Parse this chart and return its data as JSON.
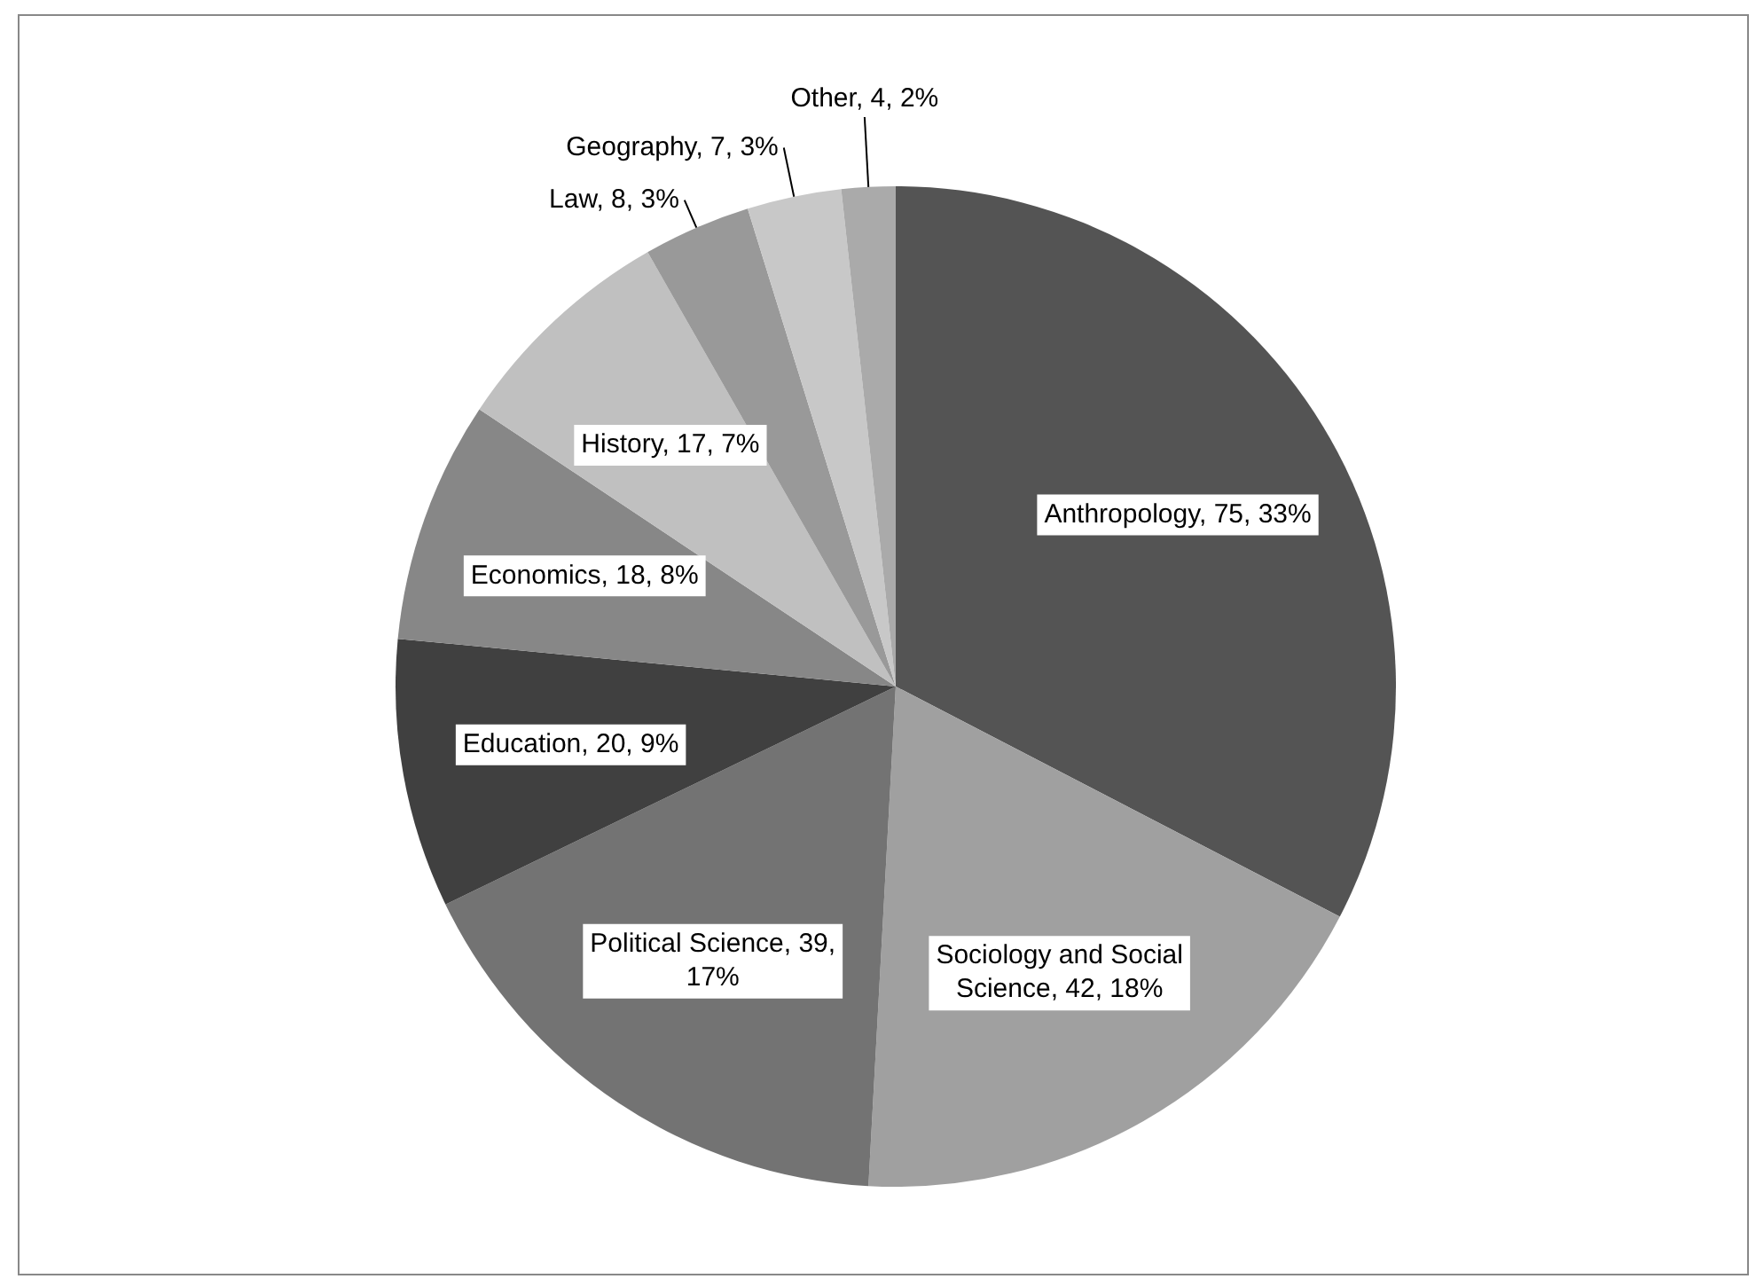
{
  "chart_data": {
    "type": "pie",
    "categories": [
      "Anthropology",
      "Sociology and Social Science",
      "Political Science",
      "Education",
      "Economics",
      "History",
      "Law",
      "Geography",
      "Other"
    ],
    "values": [
      75,
      42,
      39,
      20,
      18,
      17,
      8,
      7,
      4
    ],
    "colors": [
      "#545454",
      "#a0a0a0",
      "#737373",
      "#404040",
      "#878787",
      "#c0c0c0",
      "#999999",
      "#c8c8c8",
      "#aaaaaa"
    ],
    "value_labels": [
      "75, 33%",
      "42, 18%",
      "39, 17%",
      "20, 9%",
      "18, 8%",
      "17, 7%",
      "8, 3%",
      "7, 3%",
      "4, 2%"
    ],
    "legend": false
  }
}
